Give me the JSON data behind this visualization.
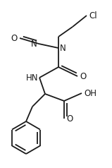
{
  "bg_color": "#ffffff",
  "line_color": "#1a1a1a",
  "line_width": 1.3,
  "figsize": [
    1.59,
    2.38
  ],
  "dpi": 100,
  "xlim": [
    0,
    159
  ],
  "ylim": [
    0,
    238
  ]
}
